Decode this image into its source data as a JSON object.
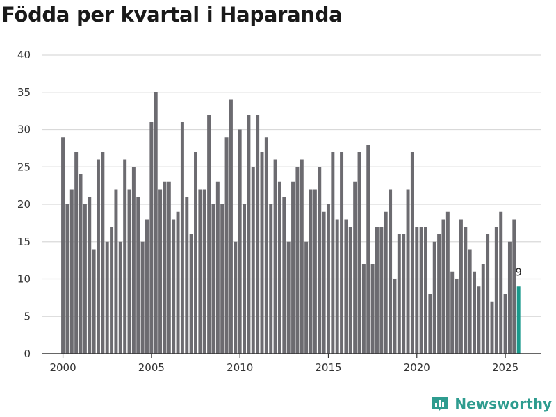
{
  "chart_data": {
    "type": "bar",
    "title": "Födda per kvartal i Haparanda",
    "xlabel": "",
    "ylabel": "",
    "ylim": [
      0,
      40
    ],
    "yticks": [
      0,
      5,
      10,
      15,
      20,
      25,
      30,
      35,
      40
    ],
    "xticks": [
      2000,
      2005,
      2010,
      2015,
      2020,
      2025
    ],
    "xlim": [
      1998.8,
      2027.0
    ],
    "start": 2000,
    "step": 0.25,
    "values": [
      29,
      20,
      22,
      27,
      24,
      20,
      21,
      14,
      26,
      27,
      15,
      17,
      22,
      15,
      26,
      22,
      25,
      21,
      15,
      18,
      31,
      35,
      22,
      23,
      23,
      18,
      19,
      31,
      21,
      16,
      27,
      22,
      22,
      32,
      20,
      23,
      20,
      29,
      34,
      15,
      30,
      20,
      32,
      25,
      32,
      27,
      29,
      20,
      26,
      23,
      21,
      15,
      23,
      25,
      26,
      15,
      22,
      22,
      25,
      19,
      20,
      27,
      18,
      27,
      18,
      17,
      23,
      27,
      12,
      28,
      12,
      17,
      17,
      19,
      22,
      10,
      16,
      16,
      22,
      27,
      17,
      17,
      17,
      8,
      15,
      16,
      18,
      19,
      11,
      10,
      18,
      17,
      14,
      11,
      9,
      12,
      16,
      7,
      17,
      19,
      8,
      15,
      18,
      9
    ],
    "highlight_last": true,
    "last_label": "9",
    "colors": {
      "bar": "#6c6b70",
      "highlight": "#1a9a8c",
      "grid": "#d9d9d9",
      "axis": "#333333"
    }
  },
  "brand": {
    "name": "Newsworthy",
    "icon": "newsworthy-logo-icon",
    "color": "#2e9c8f"
  }
}
